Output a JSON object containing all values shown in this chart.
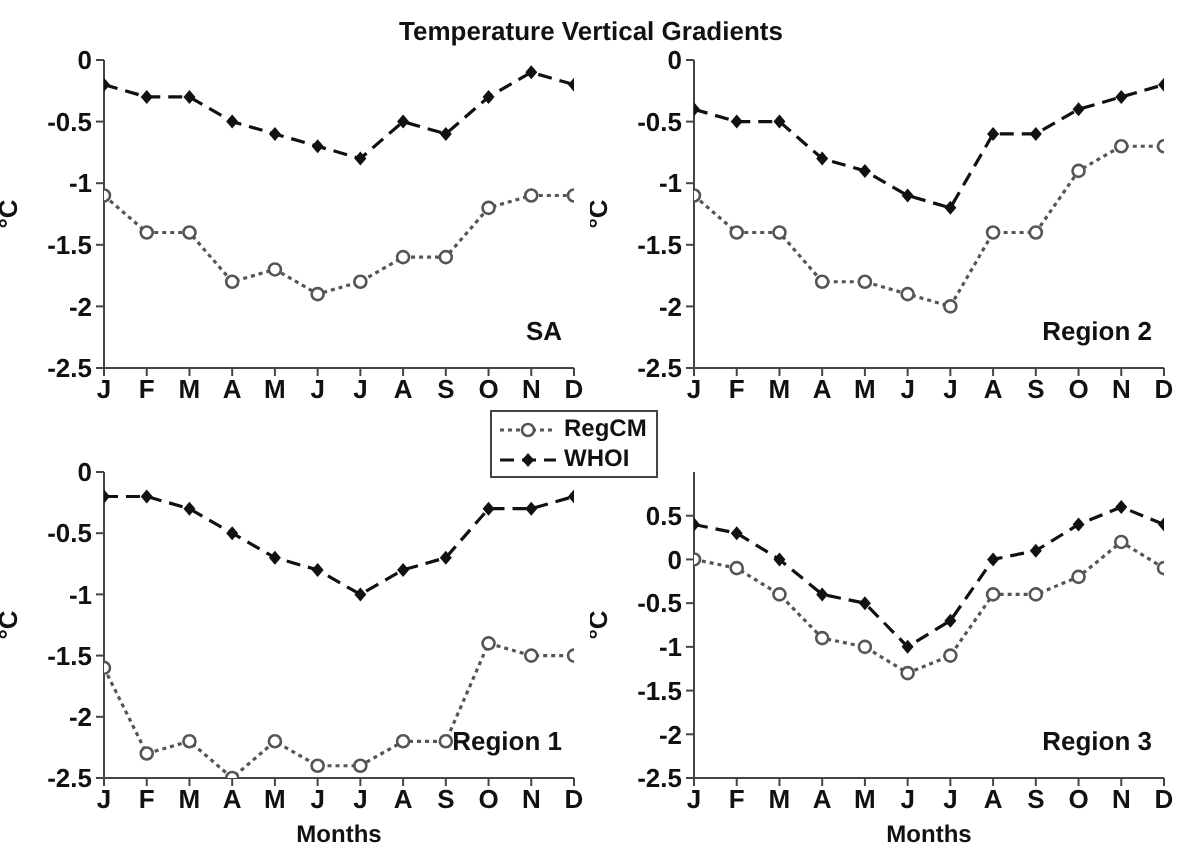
{
  "chart_data": [
    {
      "type": "line",
      "title": "Temperature Vertical Gradients",
      "ylabel": "°C",
      "categories": [
        "J",
        "F",
        "M",
        "A",
        "M",
        "J",
        "J",
        "A",
        "S",
        "O",
        "N",
        "D"
      ],
      "ylim": [
        -2.5,
        0
      ],
      "yticks": [
        -2.5,
        -2,
        -1.5,
        -1,
        -0.5,
        0
      ],
      "grid": false,
      "legend": "bottom right",
      "annotations": [
        "SA"
      ],
      "series": [
        {
          "name": "RegCM",
          "color": "#555555",
          "line_style": "dotted",
          "marker": "circle",
          "values": [
            -1.1,
            -1.4,
            -1.4,
            -1.8,
            -1.7,
            -1.9,
            -1.8,
            -1.6,
            -1.6,
            -1.2,
            -1.1,
            -1.1
          ]
        },
        {
          "name": "WHOI",
          "color": "#111111",
          "line_style": "dashed",
          "marker": "diamond",
          "values": [
            -0.2,
            -0.3,
            -0.3,
            -0.5,
            -0.6,
            -0.7,
            -0.8,
            -0.5,
            -0.6,
            -0.3,
            -0.1,
            -0.2
          ]
        }
      ]
    },
    {
      "type": "line",
      "ylabel": "°C",
      "categories": [
        "J",
        "F",
        "M",
        "A",
        "M",
        "J",
        "J",
        "A",
        "S",
        "O",
        "N",
        "D"
      ],
      "ylim": [
        -2.5,
        0
      ],
      "yticks": [
        -2.5,
        -2,
        -1.5,
        -1,
        -0.5,
        0
      ],
      "grid": false,
      "annotations": [
        "Region 2"
      ],
      "series": [
        {
          "color": "#555555",
          "line_style": "dotted",
          "marker": "circle",
          "values": [
            -1.1,
            -1.4,
            -1.4,
            -1.8,
            -1.8,
            -1.9,
            -2.0,
            -1.4,
            -1.4,
            -0.9,
            -0.7,
            -0.7
          ]
        },
        {
          "color": "#111111",
          "line_style": "dashed",
          "marker": "diamond",
          "values": [
            -0.4,
            -0.5,
            -0.5,
            -0.8,
            -0.9,
            -1.1,
            -1.2,
            -0.6,
            -0.6,
            -0.4,
            -0.3,
            -0.2
          ]
        }
      ]
    },
    {
      "type": "line",
      "xlabel": "Months",
      "ylabel": "°C",
      "categories": [
        "J",
        "F",
        "M",
        "A",
        "M",
        "J",
        "J",
        "A",
        "S",
        "O",
        "N",
        "D"
      ],
      "ylim": [
        -2.5,
        0
      ],
      "yticks": [
        -2.5,
        -2,
        -1.5,
        -1,
        -0.5,
        0
      ],
      "grid": false,
      "annotations": [
        "Region 1"
      ],
      "series": [
        {
          "color": "#555555",
          "line_style": "dotted",
          "marker": "circle",
          "values": [
            -1.6,
            -2.3,
            -2.2,
            -2.5,
            -2.2,
            -2.4,
            -2.4,
            -2.2,
            -2.2,
            -1.4,
            -1.5,
            -1.5
          ]
        },
        {
          "color": "#111111",
          "line_style": "dashed",
          "marker": "diamond",
          "values": [
            -0.2,
            -0.2,
            -0.3,
            -0.5,
            -0.7,
            -0.8,
            -1.0,
            -0.8,
            -0.7,
            -0.3,
            -0.3,
            -0.2
          ]
        }
      ]
    },
    {
      "type": "line",
      "xlabel": "Months",
      "ylabel": "°C",
      "categories": [
        "J",
        "F",
        "M",
        "A",
        "M",
        "J",
        "J",
        "A",
        "S",
        "O",
        "N",
        "D"
      ],
      "ylim": [
        -2.5,
        1
      ],
      "yticks": [
        -2.5,
        -2,
        -1.5,
        -1,
        -0.5,
        0,
        0.5
      ],
      "grid": false,
      "annotations": [
        "Region 3"
      ],
      "series": [
        {
          "color": "#555555",
          "line_style": "dotted",
          "marker": "circle",
          "values": [
            0,
            -0.1,
            -0.4,
            -0.9,
            -1.0,
            -1.3,
            -1.1,
            -0.4,
            -0.4,
            -0.2,
            0.2,
            -0.1
          ]
        },
        {
          "color": "#111111",
          "line_style": "dashed",
          "marker": "diamond",
          "values": [
            0.4,
            0.3,
            0,
            -0.4,
            -0.5,
            -1.0,
            -0.7,
            0,
            0.1,
            0.4,
            0.6,
            0.4
          ]
        }
      ]
    }
  ]
}
